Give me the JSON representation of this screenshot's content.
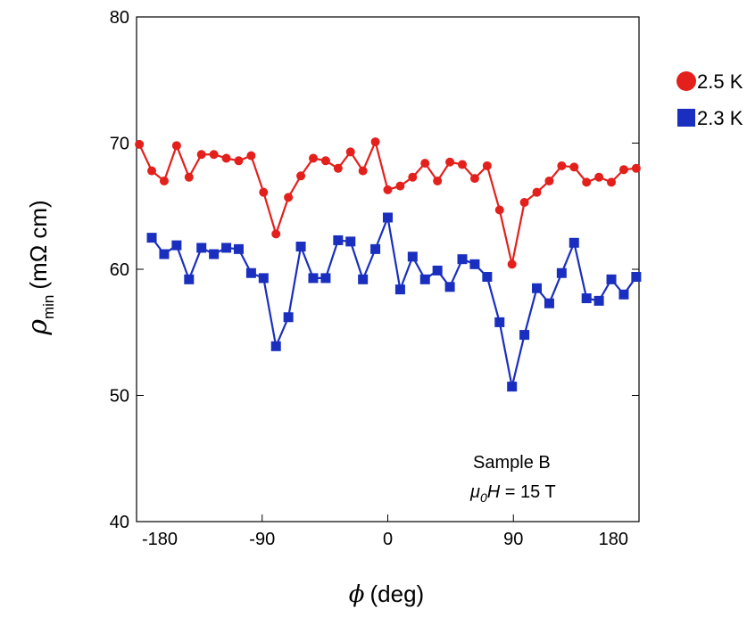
{
  "chart_data": {
    "type": "line",
    "xlabel": {
      "symbol": "ϕ",
      "unit": "(deg)"
    },
    "ylabel": {
      "symbol": "ρ",
      "subscript": "min",
      "unit": "(mΩ cm)"
    },
    "annotation": {
      "line1": "Sample B",
      "symbol": "μ",
      "subscript": "0",
      "field": "H",
      "rest": " = 15 T"
    },
    "xlim": [
      -180,
      180
    ],
    "xticks": [
      -180,
      -90,
      0,
      90,
      180
    ],
    "ylim": [
      40,
      80
    ],
    "yticks": [
      40,
      50,
      60,
      70,
      80
    ],
    "x": [
      -178,
      -169.1,
      -160.2,
      -151.3,
      -142.4,
      -133.5,
      -124.6,
      -115.7,
      -106.8,
      -97.9,
      -89,
      -80.1,
      -71.2,
      -62.3,
      -53.4,
      -44.5,
      -35.6,
      -26.7,
      -17.8,
      -8.9,
      0,
      8.9,
      17.8,
      26.7,
      35.6,
      44.5,
      53.4,
      62.3,
      71.2,
      80.1,
      89,
      97.9,
      106.8,
      115.7,
      124.6,
      133.5,
      142.4,
      151.3,
      160.2,
      169.1,
      178
    ],
    "series": [
      {
        "name": "2.5 K",
        "color": "#e3201c",
        "marker": "circle",
        "values": [
          69.9,
          67.8,
          67.0,
          69.8,
          67.3,
          69.1,
          69.1,
          68.8,
          68.6,
          69.0,
          66.1,
          62.8,
          65.7,
          67.4,
          68.8,
          68.6,
          68.0,
          69.3,
          67.8,
          70.1,
          66.3,
          66.6,
          67.3,
          68.4,
          67.0,
          68.5,
          68.3,
          67.2,
          68.2,
          64.7,
          60.4,
          65.3,
          66.1,
          67.0,
          68.2,
          68.1,
          66.9,
          67.3,
          66.9,
          67.9,
          68.0
        ]
      },
      {
        "name": "2.3 K",
        "color": "#1a2fbf",
        "marker": "square",
        "values": [
          null,
          62.5,
          61.2,
          61.9,
          59.2,
          61.7,
          61.2,
          61.7,
          61.6,
          59.7,
          59.3,
          53.9,
          56.2,
          61.8,
          59.3,
          59.3,
          62.3,
          62.2,
          59.2,
          61.6,
          64.1,
          58.4,
          61.0,
          59.2,
          59.9,
          58.6,
          60.8,
          60.4,
          59.4,
          55.8,
          50.7,
          54.8,
          58.5,
          57.3,
          59.7,
          62.1,
          57.7,
          57.5,
          59.2,
          58.0,
          59.4
        ]
      }
    ]
  }
}
